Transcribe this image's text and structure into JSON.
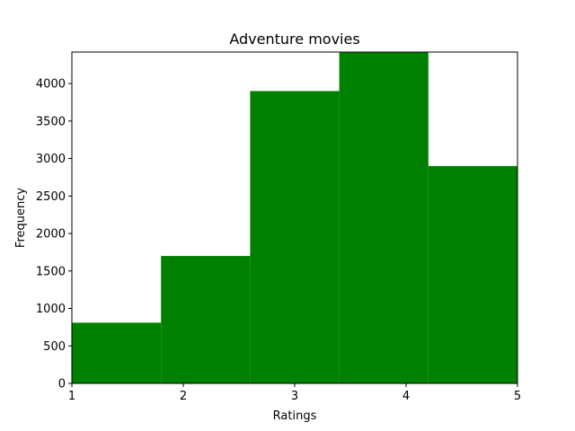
{
  "chart_data": {
    "type": "bar",
    "title": "Adventure movies",
    "xlabel": "Ratings",
    "ylabel": "Frequency",
    "bins": [
      {
        "x0": 1.0,
        "x1": 1.8,
        "value": 810
      },
      {
        "x0": 1.8,
        "x1": 2.6,
        "value": 1700
      },
      {
        "x0": 2.6,
        "x1": 3.4,
        "value": 3900
      },
      {
        "x0": 3.4,
        "x1": 4.2,
        "value": 4420
      },
      {
        "x0": 4.2,
        "x1": 5.0,
        "value": 2900
      }
    ],
    "xlim": [
      1,
      5
    ],
    "ylim": [
      0,
      4420
    ],
    "xticks": [
      "1",
      "2",
      "3",
      "4",
      "5"
    ],
    "yticks": [
      "0",
      "500",
      "1000",
      "1500",
      "2000",
      "2500",
      "3000",
      "3500",
      "4000"
    ],
    "bar_color": "#008000",
    "grid": false,
    "legend": "none"
  }
}
